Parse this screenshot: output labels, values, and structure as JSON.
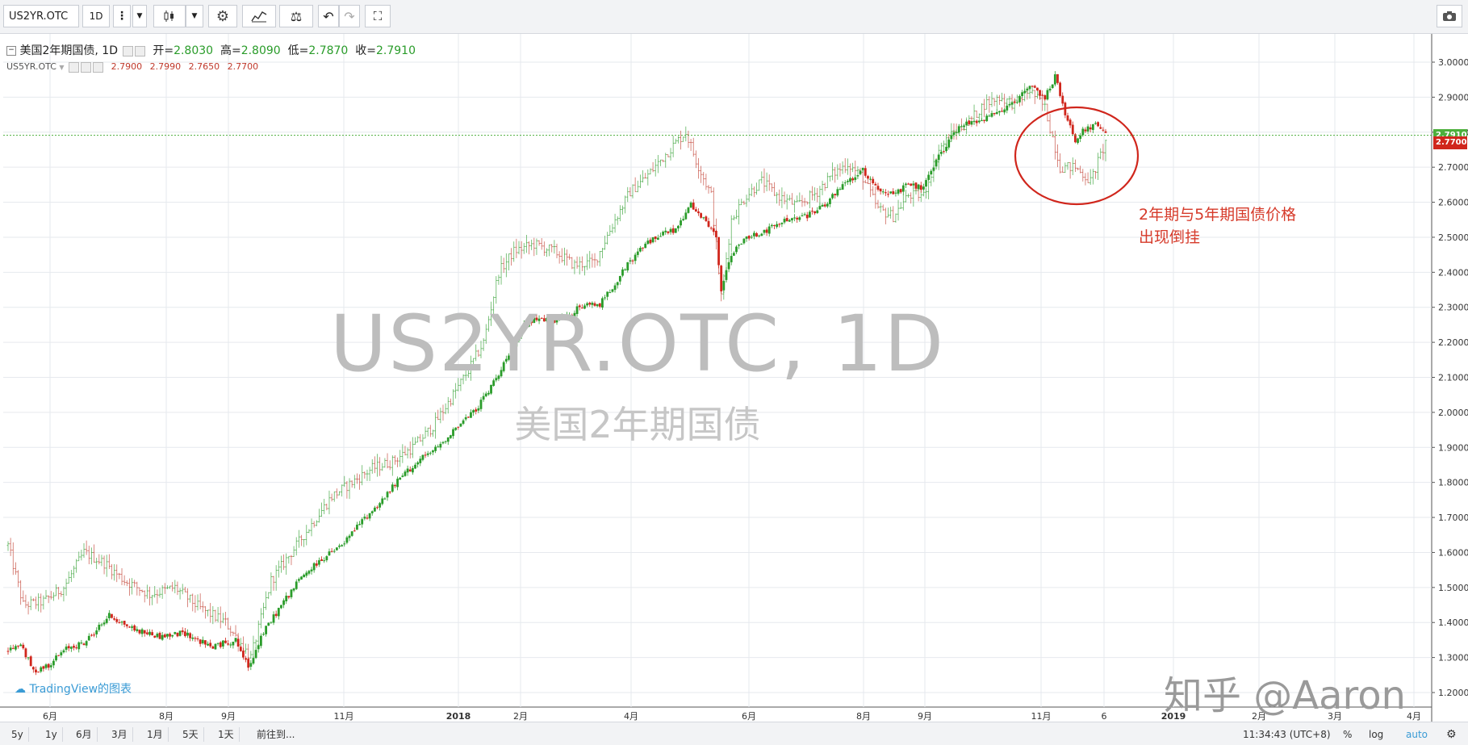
{
  "toolbar": {
    "symbol": "US2YR.OTC",
    "interval": "1D"
  },
  "legend": {
    "main_name": "美国2年期国债",
    "main_interval": "1D",
    "open_label": "开=",
    "open": "2.8030",
    "high_label": "高=",
    "high": "2.8090",
    "low_label": "低=",
    "low": "2.7870",
    "close_label": "收=",
    "close": "2.7910",
    "compare_symbol": "US5YR.OTC",
    "compare_values": [
      "2.7900",
      "2.7990",
      "2.7650",
      "2.7700"
    ]
  },
  "watermark": {
    "line1": "US2YR.OTC, 1D",
    "line2": "美国2年期国债"
  },
  "annotation": {
    "text": "2年期与5年期国债价格\n出现倒挂"
  },
  "branding": {
    "tradingview": "TradingView的图表",
    "zhihu": "知乎 @Aaron"
  },
  "bottombar": {
    "ranges": [
      "5y",
      "1y",
      "6月",
      "3月",
      "1月",
      "5天",
      "1天",
      "前往到..."
    ],
    "time": "11:34:43 (UTC+8)",
    "percent": "%",
    "log": "log",
    "auto": "auto"
  },
  "chart_data": {
    "type": "candlestick",
    "y_ticks": [
      "3.0000",
      "2.9000",
      "2.8000",
      "2.7000",
      "2.6000",
      "2.5000",
      "2.4000",
      "2.3000",
      "2.2000",
      "2.1000",
      "2.0000",
      "1.9000",
      "1.8000",
      "1.7000",
      "1.6000",
      "1.5000",
      "1.4000",
      "1.3000",
      "1.2000"
    ],
    "ylim": [
      1.2,
      3.0
    ],
    "x_ticks": [
      "6月",
      "8月",
      "9月",
      "11月",
      "2018",
      "2月",
      "4月",
      "6月",
      "8月",
      "9月",
      "11月",
      "6",
      "2019",
      "2月",
      "3月",
      "4月"
    ],
    "price_labels": {
      "US2YR.OTC": "2.7910",
      "US5YR.OTC": "2.7700"
    },
    "colors": {
      "up": "#2a9c2a",
      "down": "#d0261c",
      "series2_up": "#2a9c2a",
      "series2_down": "#c0392b",
      "grid": "#e6e9ee",
      "tag_main": "#4caf3c",
      "tag_compare": "#d0261c"
    },
    "series": [
      {
        "name": "US2YR.OTC",
        "style": "candles",
        "anchors": [
          [
            0,
            1.32
          ],
          [
            5,
            1.34
          ],
          [
            10,
            1.26
          ],
          [
            16,
            1.28
          ],
          [
            24,
            1.33
          ],
          [
            30,
            1.34
          ],
          [
            40,
            1.42
          ],
          [
            50,
            1.38
          ],
          [
            60,
            1.36
          ],
          [
            70,
            1.37
          ],
          [
            80,
            1.33
          ],
          [
            90,
            1.35
          ],
          [
            95,
            1.27
          ],
          [
            100,
            1.36
          ],
          [
            108,
            1.45
          ],
          [
            116,
            1.53
          ],
          [
            124,
            1.58
          ],
          [
            132,
            1.62
          ],
          [
            140,
            1.69
          ],
          [
            148,
            1.75
          ],
          [
            156,
            1.82
          ],
          [
            164,
            1.87
          ],
          [
            170,
            1.9
          ],
          [
            176,
            1.95
          ],
          [
            184,
            2.0
          ],
          [
            190,
            2.06
          ],
          [
            196,
            2.14
          ],
          [
            200,
            2.18
          ],
          [
            204,
            2.25
          ],
          [
            210,
            2.27
          ],
          [
            218,
            2.26
          ],
          [
            226,
            2.3
          ],
          [
            234,
            2.31
          ],
          [
            240,
            2.37
          ],
          [
            246,
            2.43
          ],
          [
            252,
            2.48
          ],
          [
            258,
            2.51
          ],
          [
            264,
            2.52
          ],
          [
            270,
            2.59
          ],
          [
            276,
            2.54
          ],
          [
            280,
            2.5
          ],
          [
            282,
            2.35
          ],
          [
            286,
            2.45
          ],
          [
            292,
            2.5
          ],
          [
            300,
            2.52
          ],
          [
            308,
            2.55
          ],
          [
            316,
            2.56
          ],
          [
            324,
            2.6
          ],
          [
            332,
            2.66
          ],
          [
            338,
            2.69
          ],
          [
            344,
            2.64
          ],
          [
            350,
            2.62
          ],
          [
            356,
            2.65
          ],
          [
            362,
            2.64
          ],
          [
            368,
            2.73
          ],
          [
            374,
            2.8
          ],
          [
            380,
            2.83
          ],
          [
            386,
            2.84
          ],
          [
            392,
            2.86
          ],
          [
            398,
            2.88
          ],
          [
            404,
            2.93
          ],
          [
            410,
            2.9
          ],
          [
            414,
            2.96
          ],
          [
            418,
            2.85
          ],
          [
            422,
            2.78
          ],
          [
            426,
            2.81
          ],
          [
            430,
            2.82
          ],
          [
            434,
            2.79
          ]
        ]
      },
      {
        "name": "US5YR.OTC",
        "style": "bars",
        "anchors": [
          [
            0,
            1.62
          ],
          [
            6,
            1.45
          ],
          [
            14,
            1.46
          ],
          [
            22,
            1.5
          ],
          [
            30,
            1.6
          ],
          [
            38,
            1.57
          ],
          [
            46,
            1.52
          ],
          [
            56,
            1.48
          ],
          [
            66,
            1.5
          ],
          [
            76,
            1.44
          ],
          [
            86,
            1.4
          ],
          [
            96,
            1.3
          ],
          [
            104,
            1.52
          ],
          [
            112,
            1.6
          ],
          [
            120,
            1.68
          ],
          [
            128,
            1.76
          ],
          [
            136,
            1.8
          ],
          [
            144,
            1.84
          ],
          [
            152,
            1.86
          ],
          [
            160,
            1.9
          ],
          [
            168,
            1.96
          ],
          [
            176,
            2.05
          ],
          [
            182,
            2.12
          ],
          [
            188,
            2.2
          ],
          [
            194,
            2.4
          ],
          [
            200,
            2.46
          ],
          [
            208,
            2.48
          ],
          [
            216,
            2.46
          ],
          [
            224,
            2.42
          ],
          [
            232,
            2.43
          ],
          [
            240,
            2.55
          ],
          [
            246,
            2.63
          ],
          [
            252,
            2.67
          ],
          [
            258,
            2.72
          ],
          [
            264,
            2.77
          ],
          [
            268,
            2.8
          ],
          [
            272,
            2.72
          ],
          [
            278,
            2.62
          ],
          [
            282,
            2.33
          ],
          [
            286,
            2.55
          ],
          [
            292,
            2.62
          ],
          [
            298,
            2.66
          ],
          [
            304,
            2.62
          ],
          [
            312,
            2.59
          ],
          [
            320,
            2.63
          ],
          [
            326,
            2.68
          ],
          [
            332,
            2.71
          ],
          [
            338,
            2.67
          ],
          [
            344,
            2.58
          ],
          [
            350,
            2.56
          ],
          [
            356,
            2.62
          ],
          [
            362,
            2.62
          ],
          [
            368,
            2.75
          ],
          [
            374,
            2.8
          ],
          [
            380,
            2.83
          ],
          [
            386,
            2.88
          ],
          [
            392,
            2.9
          ],
          [
            398,
            2.88
          ],
          [
            404,
            2.92
          ],
          [
            410,
            2.87
          ],
          [
            416,
            2.7
          ],
          [
            422,
            2.7
          ],
          [
            428,
            2.66
          ],
          [
            434,
            2.77
          ]
        ]
      }
    ]
  }
}
